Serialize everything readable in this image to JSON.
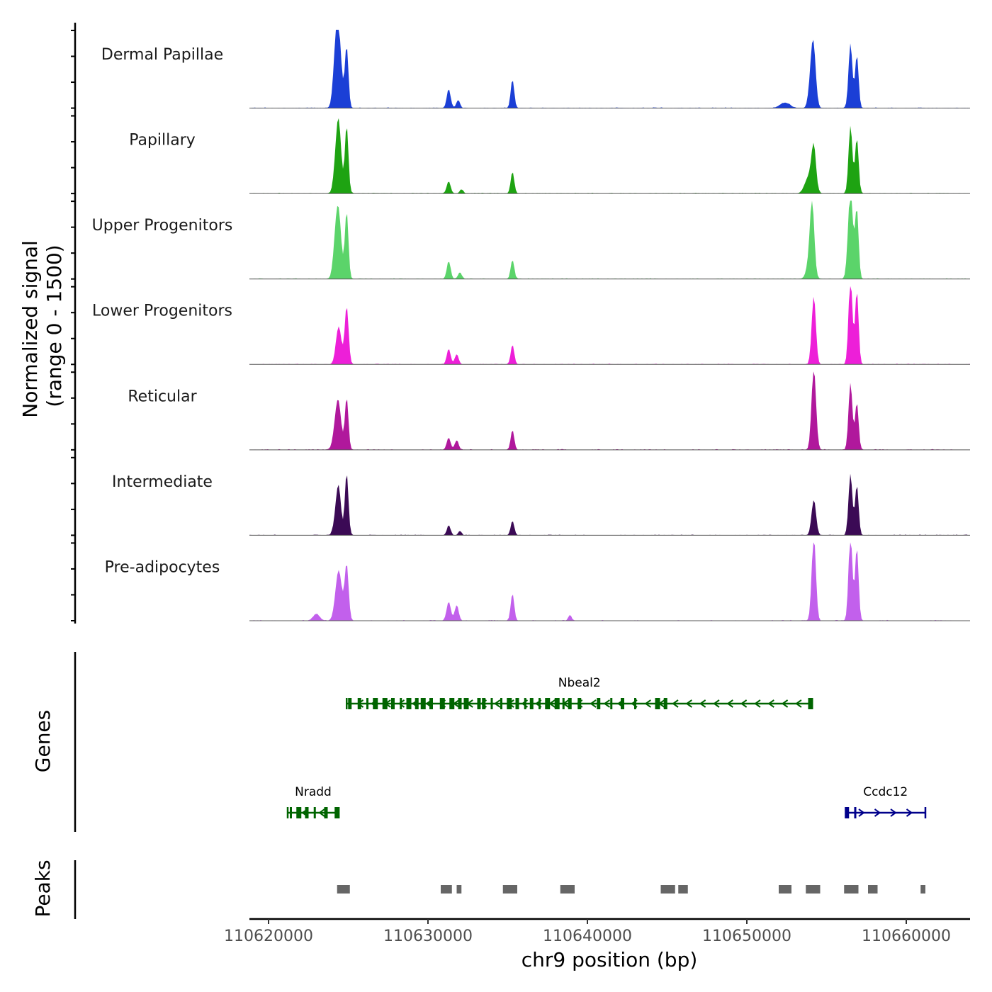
{
  "chart_data": {
    "type": "area",
    "title": "",
    "xlabel": "chr9 position (bp)",
    "ylabel": "Normalized signal\n(range 0 - 1500)",
    "ylabel_lines": [
      "Normalized signal",
      "(range 0 - 1500)"
    ],
    "ylim": [
      0,
      1500
    ],
    "xlim": [
      110618800,
      110664000
    ],
    "x_ticks": [
      110620000,
      110630000,
      110640000,
      110650000,
      110660000
    ],
    "x_tick_labels": [
      "110620000",
      "110630000",
      "110640000",
      "110650000",
      "110660000"
    ],
    "tracks": [
      {
        "name": "Dermal Papillae",
        "color": "#1b3fd6",
        "peaks": [
          [
            110624400,
            1000,
            180
          ],
          [
            110624200,
            550,
            160
          ],
          [
            110624900,
            900,
            110
          ],
          [
            110631300,
            280,
            120
          ],
          [
            110631900,
            120,
            110
          ],
          [
            110635300,
            420,
            110
          ],
          [
            110652400,
            80,
            300
          ],
          [
            110654100,
            650,
            170
          ],
          [
            110654200,
            420,
            140
          ],
          [
            110656500,
            950,
            120
          ],
          [
            110656900,
            780,
            110
          ]
        ]
      },
      {
        "name": "Papillary",
        "color": "#1ea312",
        "peaks": [
          [
            110624400,
            1000,
            160
          ],
          [
            110624200,
            250,
            150
          ],
          [
            110624900,
            1000,
            110
          ],
          [
            110631300,
            180,
            120
          ],
          [
            110632100,
            60,
            110
          ],
          [
            110635300,
            320,
            110
          ],
          [
            110653900,
            250,
            250
          ],
          [
            110654200,
            620,
            140
          ],
          [
            110656500,
            1000,
            120
          ],
          [
            110656900,
            820,
            110
          ]
        ]
      },
      {
        "name": "Upper Progenitors",
        "color": "#5bd46a",
        "peaks": [
          [
            110624400,
            870,
            170
          ],
          [
            110624200,
            400,
            160
          ],
          [
            110624900,
            990,
            110
          ],
          [
            110631300,
            260,
            120
          ],
          [
            110632000,
            100,
            110
          ],
          [
            110635300,
            280,
            110
          ],
          [
            110654100,
            850,
            130
          ],
          [
            110654000,
            350,
            200
          ],
          [
            110656500,
            1300,
            150
          ],
          [
            110656900,
            1020,
            110
          ]
        ]
      },
      {
        "name": "Lower Progenitors",
        "color": "#ed1fd8",
        "peaks": [
          [
            110624400,
            560,
            170
          ],
          [
            110624900,
            850,
            120
          ],
          [
            110631300,
            230,
            120
          ],
          [
            110631800,
            150,
            120
          ],
          [
            110635300,
            290,
            110
          ],
          [
            110654200,
            1000,
            130
          ],
          [
            110656500,
            1300,
            120
          ],
          [
            110656900,
            1080,
            110
          ]
        ]
      },
      {
        "name": "Reticular",
        "color": "#b0189c",
        "peaks": [
          [
            110624400,
            590,
            170
          ],
          [
            110624200,
            260,
            170
          ],
          [
            110624900,
            770,
            110
          ],
          [
            110631300,
            180,
            120
          ],
          [
            110631800,
            140,
            120
          ],
          [
            110635300,
            290,
            110
          ],
          [
            110654200,
            1200,
            140
          ],
          [
            110656500,
            990,
            120
          ],
          [
            110656900,
            700,
            110
          ]
        ]
      },
      {
        "name": "Intermediate",
        "color": "#3b0a55",
        "peaks": [
          [
            110624400,
            660,
            150
          ],
          [
            110624200,
            180,
            150
          ],
          [
            110624900,
            920,
            110
          ],
          [
            110631300,
            150,
            110
          ],
          [
            110632000,
            60,
            100
          ],
          [
            110635300,
            210,
            110
          ],
          [
            110654200,
            520,
            140
          ],
          [
            110656500,
            900,
            120
          ],
          [
            110656900,
            740,
            110
          ]
        ]
      },
      {
        "name": "Pre-adipocytes",
        "color": "#c260ec",
        "peaks": [
          [
            110623000,
            100,
            200
          ],
          [
            110624400,
            740,
            200
          ],
          [
            110624900,
            820,
            120
          ],
          [
            110631300,
            280,
            130
          ],
          [
            110631800,
            230,
            120
          ],
          [
            110635300,
            400,
            110
          ],
          [
            110638900,
            80,
            100
          ],
          [
            110654200,
            1260,
            130
          ],
          [
            110656500,
            1290,
            120
          ],
          [
            110656900,
            1080,
            110
          ]
        ]
      }
    ],
    "genes_track_label": "Genes",
    "genes": [
      {
        "name": "Nbeal2",
        "start": 110624900,
        "end": 110654100,
        "strand": "-",
        "color": "#006400",
        "exons": [
          110625100,
          110625700,
          110626200,
          110626700,
          110627300,
          110627800,
          110628300,
          110628800,
          110629300,
          110629700,
          110630200,
          110630900,
          110631500,
          110632000,
          110632400,
          110633200,
          110633500,
          110634000,
          110634600,
          110635100,
          110635600,
          110636100,
          110636500,
          110637000,
          110637500,
          110638100,
          110638500,
          110638900,
          110639500,
          110640700,
          110641500,
          110642200,
          110643000,
          110644400,
          110644900,
          110654000
        ]
      },
      {
        "name": "Nradd",
        "start": 110621200,
        "end": 110624400,
        "strand": "-",
        "color": "#006400",
        "exons": [
          110621400,
          110621900,
          110622400,
          110622900,
          110623600,
          110624300
        ]
      },
      {
        "name": "Ccdc12",
        "start": 110656200,
        "end": 110661200,
        "strand": "+",
        "color": "#00008b",
        "exons": [
          110656300,
          110656800
        ]
      }
    ],
    "peaks_track_label": "Peaks",
    "peak_regions": [
      [
        110624300,
        110625100
      ],
      [
        110630800,
        110631500
      ],
      [
        110631800,
        110632100
      ],
      [
        110634700,
        110635600
      ],
      [
        110638300,
        110639200
      ],
      [
        110644600,
        110645500
      ],
      [
        110645700,
        110646300
      ],
      [
        110652000,
        110652800
      ],
      [
        110653700,
        110654600
      ],
      [
        110656100,
        110657000
      ],
      [
        110657600,
        110658200
      ],
      [
        110660900,
        110661200
      ]
    ]
  },
  "colors": {
    "baseline": "#555555",
    "peak_block": "#666666",
    "axis": "#000000"
  }
}
